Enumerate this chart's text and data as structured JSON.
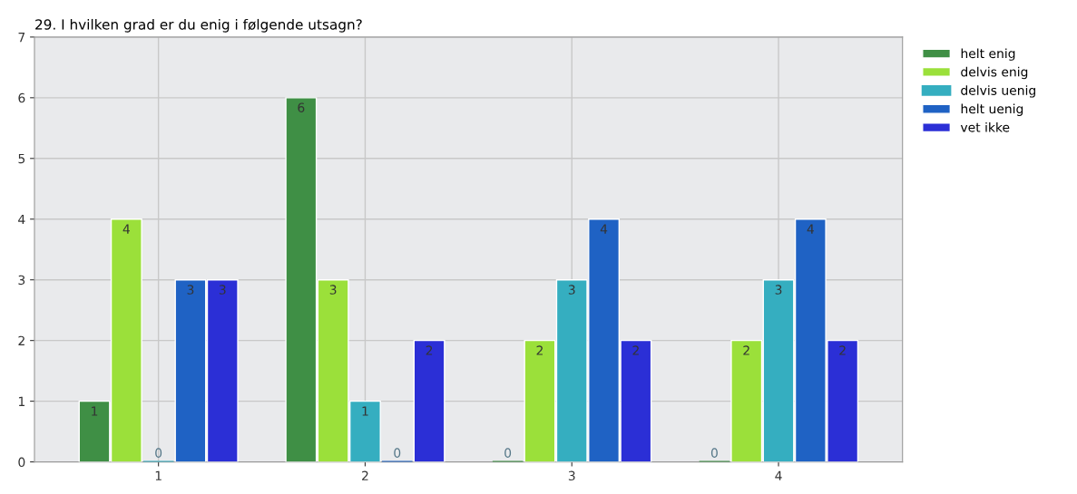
{
  "chart_data": {
    "type": "bar",
    "title": "29. I hvilken grad er du enig i følgende utsagn?",
    "categories": [
      "1",
      "2",
      "3",
      "4"
    ],
    "series": [
      {
        "name": "helt enig",
        "color": "#3f8f45",
        "values": [
          1,
          6,
          0,
          0
        ]
      },
      {
        "name": "delvis enig",
        "color": "#9be03a",
        "values": [
          4,
          3,
          2,
          2
        ]
      },
      {
        "name": "delvis uenig",
        "color": "#35aec0",
        "values": [
          0,
          1,
          3,
          3
        ]
      },
      {
        "name": "helt uenig",
        "color": "#1f62c4",
        "values": [
          3,
          0,
          4,
          4
        ]
      },
      {
        "name": "vet ikke",
        "color": "#2b2fd6",
        "values": [
          3,
          2,
          2,
          2
        ]
      }
    ],
    "ylim": [
      0,
      7
    ],
    "yticks": [
      0,
      1,
      2,
      3,
      4,
      5,
      6,
      7
    ],
    "grid": true,
    "legend": "right",
    "data_labels": true
  }
}
